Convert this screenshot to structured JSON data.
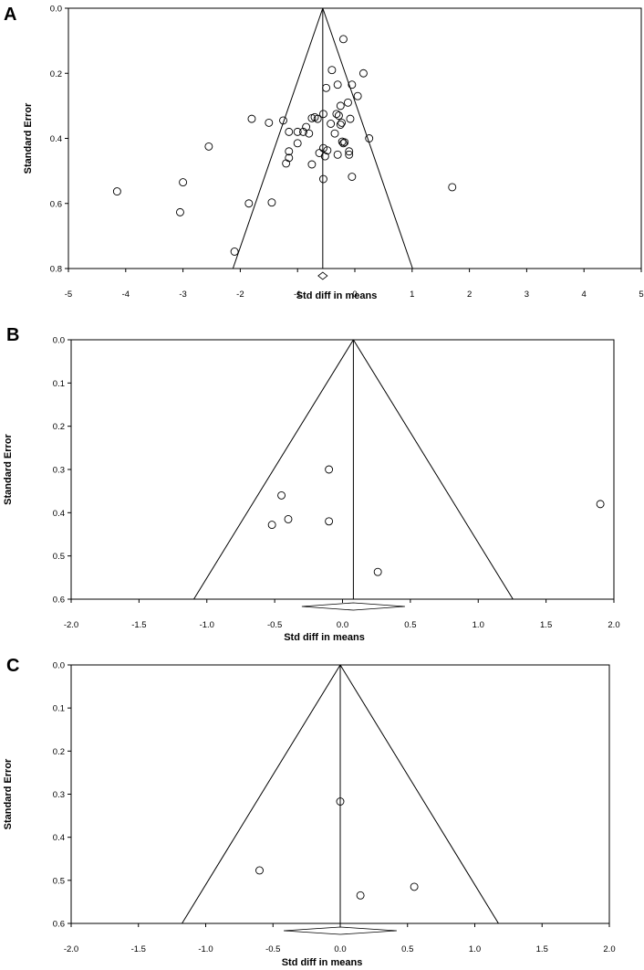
{
  "chart_data": [
    {
      "type": "scatter",
      "panel_label": "A",
      "xlabel": "Std diff in means",
      "ylabel": "Standard Error",
      "xlim": [
        -5,
        5
      ],
      "ylim": [
        0,
        0.8
      ],
      "y_reversed": true,
      "x_ticks": [
        "-5",
        "-4",
        "-3",
        "-2",
        "-1",
        "0",
        "1",
        "2",
        "3",
        "4",
        "5"
      ],
      "y_ticks": [
        "0.0",
        "0.2",
        "0.4",
        "0.6",
        "0.8"
      ],
      "summary_effect": -0.56,
      "funnel_se_max": 0.8,
      "diamond": {
        "center": -0.56,
        "low": -0.64,
        "high": -0.48
      },
      "points": [
        {
          "x": -0.2,
          "y": 0.095
        },
        {
          "x": -0.4,
          "y": 0.19
        },
        {
          "x": 0.15,
          "y": 0.2
        },
        {
          "x": -0.3,
          "y": 0.235
        },
        {
          "x": -0.05,
          "y": 0.235
        },
        {
          "x": -0.5,
          "y": 0.245
        },
        {
          "x": 0.05,
          "y": 0.27
        },
        {
          "x": -0.25,
          "y": 0.3
        },
        {
          "x": -0.12,
          "y": 0.29
        },
        {
          "x": -0.55,
          "y": 0.325
        },
        {
          "x": -0.32,
          "y": 0.325
        },
        {
          "x": -0.28,
          "y": 0.33
        },
        {
          "x": -0.08,
          "y": 0.34
        },
        {
          "x": -0.23,
          "y": 0.352
        },
        {
          "x": -0.25,
          "y": 0.358
        },
        {
          "x": -0.42,
          "y": 0.355
        },
        {
          "x": -0.7,
          "y": 0.335
        },
        {
          "x": -0.75,
          "y": 0.338
        },
        {
          "x": -0.65,
          "y": 0.34
        },
        {
          "x": -1.25,
          "y": 0.345
        },
        {
          "x": -1.5,
          "y": 0.352
        },
        {
          "x": -1.8,
          "y": 0.34
        },
        {
          "x": -0.85,
          "y": 0.365
        },
        {
          "x": -0.9,
          "y": 0.38
        },
        {
          "x": -1.0,
          "y": 0.38
        },
        {
          "x": -1.15,
          "y": 0.38
        },
        {
          "x": -0.8,
          "y": 0.385
        },
        {
          "x": -0.35,
          "y": 0.385
        },
        {
          "x": -0.22,
          "y": 0.41
        },
        {
          "x": -0.18,
          "y": 0.412
        },
        {
          "x": -0.2,
          "y": 0.415
        },
        {
          "x": 0.25,
          "y": 0.4
        },
        {
          "x": -1.0,
          "y": 0.415
        },
        {
          "x": -0.55,
          "y": 0.43
        },
        {
          "x": -0.48,
          "y": 0.437
        },
        {
          "x": -1.15,
          "y": 0.44
        },
        {
          "x": -0.1,
          "y": 0.44
        },
        {
          "x": -0.62,
          "y": 0.445
        },
        {
          "x": -0.3,
          "y": 0.45
        },
        {
          "x": -0.1,
          "y": 0.45
        },
        {
          "x": -0.52,
          "y": 0.455
        },
        {
          "x": -1.15,
          "y": 0.46
        },
        {
          "x": -1.2,
          "y": 0.477
        },
        {
          "x": -0.75,
          "y": 0.48
        },
        {
          "x": -2.55,
          "y": 0.425
        },
        {
          "x": -0.05,
          "y": 0.518
        },
        {
          "x": -0.55,
          "y": 0.525
        },
        {
          "x": -3.0,
          "y": 0.535
        },
        {
          "x": -4.15,
          "y": 0.563
        },
        {
          "x": 1.7,
          "y": 0.55
        },
        {
          "x": -1.45,
          "y": 0.597
        },
        {
          "x": -1.85,
          "y": 0.6
        },
        {
          "x": -3.05,
          "y": 0.627
        },
        {
          "x": -2.1,
          "y": 0.748
        }
      ]
    },
    {
      "type": "scatter",
      "panel_label": "B",
      "xlabel": "Std diff in means",
      "ylabel": "Standard Error",
      "xlim": [
        -2.0,
        2.0
      ],
      "ylim": [
        0,
        0.6
      ],
      "y_reversed": true,
      "x_ticks": [
        "-2.0",
        "-1.5",
        "-1.0",
        "-0.5",
        "0.0",
        "0.5",
        "1.0",
        "1.5",
        "2.0"
      ],
      "y_ticks": [
        "0.0",
        "0.1",
        "0.2",
        "0.3",
        "0.4",
        "0.5",
        "0.6"
      ],
      "summary_effect": 0.08,
      "funnel_se_max": 0.6,
      "diamond": {
        "center": 0.08,
        "low": -0.3,
        "high": 0.46
      },
      "points": [
        {
          "x": -0.1,
          "y": 0.3
        },
        {
          "x": -0.45,
          "y": 0.36
        },
        {
          "x": -0.4,
          "y": 0.415
        },
        {
          "x": -0.52,
          "y": 0.428
        },
        {
          "x": -0.1,
          "y": 0.42
        },
        {
          "x": 1.9,
          "y": 0.38
        },
        {
          "x": 0.26,
          "y": 0.537
        }
      ]
    },
    {
      "type": "scatter",
      "panel_label": "C",
      "xlabel": "Std diff in means",
      "ylabel": "Standard Error",
      "xlim": [
        -2.0,
        2.0
      ],
      "ylim": [
        0,
        0.6
      ],
      "y_reversed": true,
      "x_ticks": [
        "-2.0",
        "-1.5",
        "-1.0",
        "-0.5",
        "0.0",
        "0.5",
        "1.0",
        "1.5",
        "2.0"
      ],
      "y_ticks": [
        "0.0",
        "0.1",
        "0.2",
        "0.3",
        "0.4",
        "0.5",
        "0.6"
      ],
      "summary_effect": 0.0,
      "funnel_se_max": 0.6,
      "diamond": {
        "center": 0.0,
        "low": -0.42,
        "high": 0.42
      },
      "points": [
        {
          "x": 0.0,
          "y": 0.317
        },
        {
          "x": -0.6,
          "y": 0.477
        },
        {
          "x": 0.15,
          "y": 0.535
        },
        {
          "x": 0.55,
          "y": 0.515
        }
      ]
    }
  ]
}
